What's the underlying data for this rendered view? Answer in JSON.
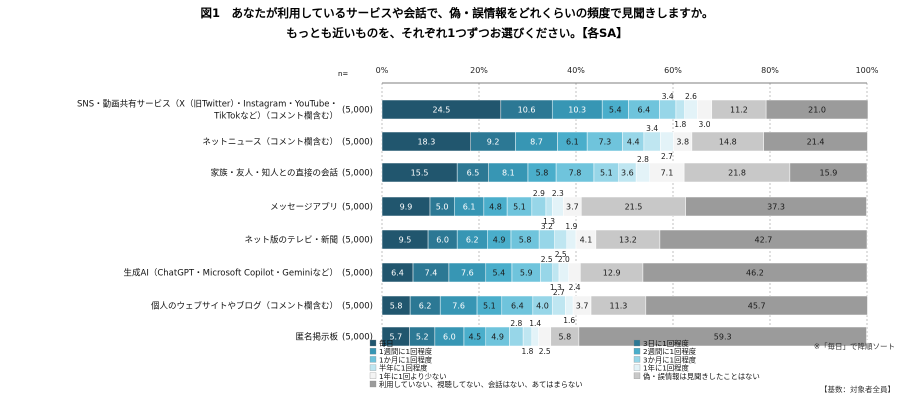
{
  "title_line1": "図1　あなたが利用しているサービスや会話で、偽・誤情報をどれくらいの頻度で見聞きしますか。",
  "title_line2": "もっとも近いものを、それぞれ1つずつお選びください。【各SA】",
  "n_label": "n=",
  "sort_note": "※「毎日」で降順ソート",
  "base_note": "【基数：対象者全員】",
  "chart_data": {
    "type": "bar",
    "orientation": "horizontal",
    "stacked": true,
    "percent_axis": true,
    "xlim": [
      0,
      100
    ],
    "ticks": [
      "0%",
      "20%",
      "40%",
      "60%",
      "80%",
      "100%"
    ],
    "grid": true,
    "legend_position": "bottom",
    "categories": [
      [
        "SNS・動画共有サービス（X（旧Twitter）・Instagram・YouTube・",
        "TikTokなど）（コメント欄含む）"
      ],
      [
        "ネットニュース（コメント欄含む）"
      ],
      [
        "家族・友人・知人との直接の会話"
      ],
      [
        "メッセージアプリ"
      ],
      [
        "ネット版のテレビ・新聞"
      ],
      [
        "生成AI（ChatGPT・Microsoft Copilot・Geminiなど）"
      ],
      [
        "個人のウェブサイトやブログ（コメント欄含む）"
      ],
      [
        "匿名掲示板"
      ]
    ],
    "n": [
      "(5,000)",
      "(5,000)",
      "(5,000)",
      "(5,000)",
      "(5,000)",
      "(5,000)",
      "(5,000)",
      "(5,000)"
    ],
    "series": [
      {
        "name": "毎日",
        "color": "#21566e",
        "values": [
          24.5,
          18.3,
          15.5,
          9.9,
          9.5,
          6.4,
          5.8,
          5.7
        ]
      },
      {
        "name": "3日に1回程度",
        "color": "#2c7894",
        "values": [
          10.6,
          9.2,
          6.5,
          5.0,
          6.0,
          7.4,
          6.2,
          5.2
        ]
      },
      {
        "name": "1週間に1回程度",
        "color": "#3796b4",
        "values": [
          10.3,
          8.7,
          8.1,
          6.1,
          6.2,
          7.6,
          7.6,
          6.0
        ]
      },
      {
        "name": "2週間に1回程度",
        "color": "#4aaecb",
        "values": [
          5.4,
          6.1,
          5.8,
          4.8,
          4.9,
          5.4,
          5.1,
          4.5
        ]
      },
      {
        "name": "1か月に1回程度",
        "color": "#6fc4dc",
        "values": [
          6.4,
          7.3,
          7.8,
          5.1,
          5.8,
          5.9,
          6.4,
          4.9
        ]
      },
      {
        "name": "3か月に1回程度",
        "color": "#97d6e8",
        "values": [
          3.4,
          4.4,
          5.1,
          2.9,
          3.2,
          2.5,
          4.0,
          2.8
        ]
      },
      {
        "name": "半年に1回程度",
        "color": "#bfe6f1",
        "values": [
          1.8,
          3.4,
          3.6,
          1.3,
          2.5,
          1.3,
          2.7,
          1.8
        ]
      },
      {
        "name": "1年に1回程度",
        "color": "#e3f3f8",
        "values": [
          2.6,
          2.7,
          2.8,
          2.3,
          1.9,
          2.0,
          1.6,
          1.4
        ]
      },
      {
        "name": "1年に1回より少ない",
        "color": "#f4f4f4",
        "values": [
          3.0,
          3.8,
          7.1,
          3.7,
          4.1,
          2.4,
          3.7,
          2.5
        ]
      },
      {
        "name": "偽・誤情報は見聞きしたことはない",
        "color": "#c8c8c8",
        "values": [
          11.2,
          14.8,
          21.8,
          21.5,
          13.2,
          12.9,
          11.3,
          5.8
        ]
      },
      {
        "name": "利用していない、視聴してない、会話はない、あてはまらない",
        "color": "#9b9b9b",
        "values": [
          21.0,
          21.4,
          15.9,
          37.3,
          42.7,
          46.2,
          45.7,
          59.3
        ]
      }
    ]
  }
}
